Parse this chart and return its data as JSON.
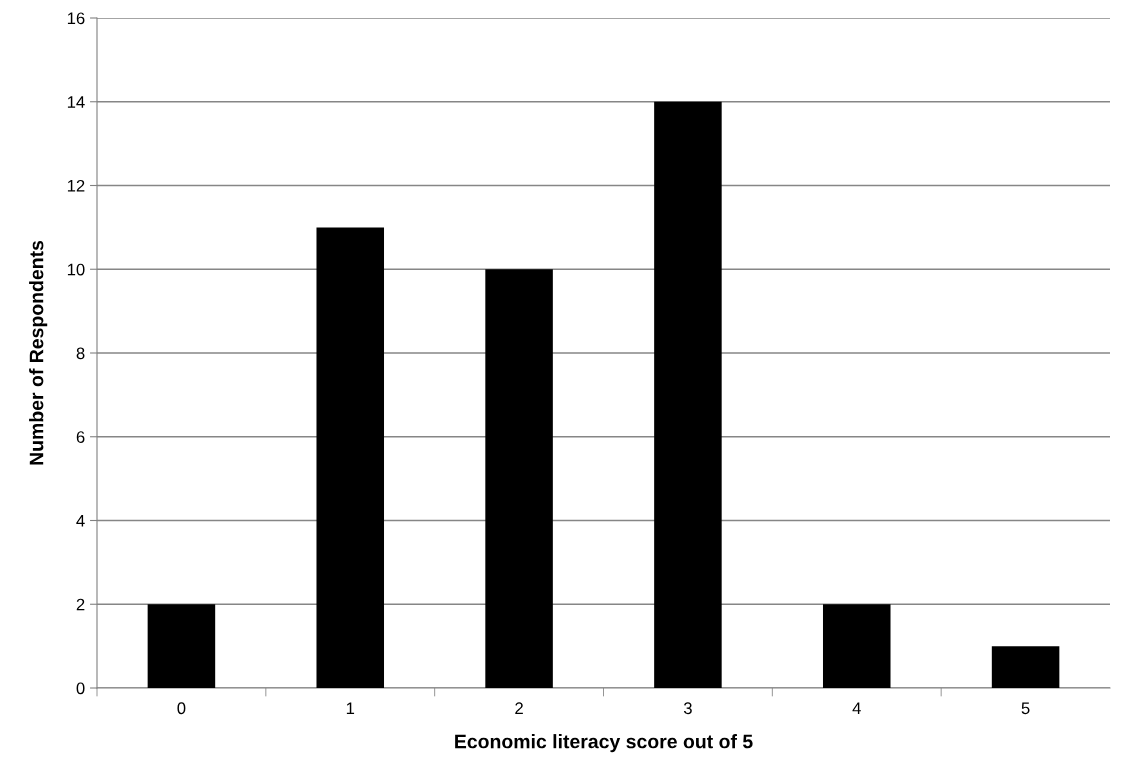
{
  "chart_data": {
    "type": "bar",
    "xlabel": "Economic literacy score out of 5",
    "ylabel": "Number of Respondents",
    "categories": [
      "0",
      "1",
      "2",
      "3",
      "4",
      "5"
    ],
    "values": [
      2,
      11,
      10,
      14,
      2,
      1
    ],
    "color": "#000000",
    "ylim": [
      0,
      16
    ],
    "yticks": [
      0,
      2,
      4,
      6,
      8,
      10,
      12,
      14,
      16
    ],
    "grid": "y"
  }
}
